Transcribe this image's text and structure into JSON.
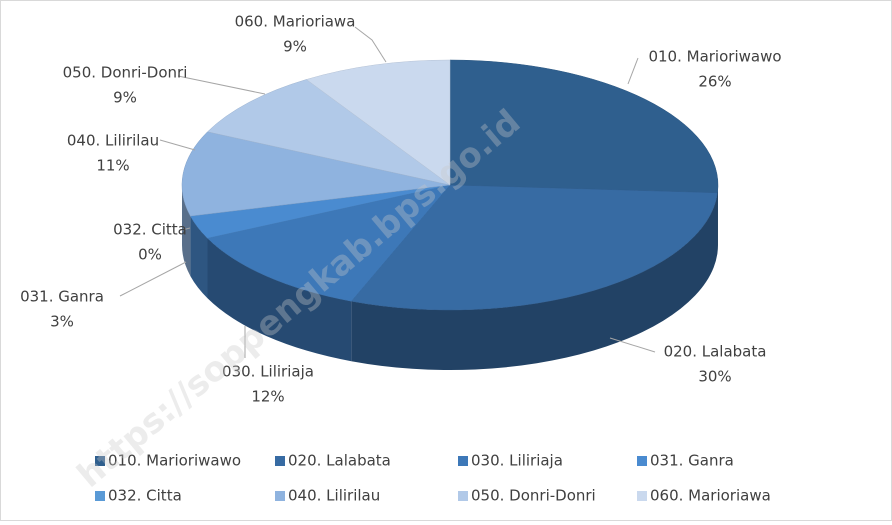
{
  "chart_data": {
    "type": "pie",
    "categories": [
      "010. Marioriwawo",
      "020. Lalabata",
      "030. Liliriaja",
      "031. Ganra",
      "032. Citta",
      "040. Lilirilau",
      "050. Donri-Donri",
      "060. Marioriawa"
    ],
    "values": [
      26,
      30,
      12,
      3,
      0,
      11,
      9,
      9
    ],
    "value_labels": [
      "26%",
      "30%",
      "12%",
      "3%",
      "0%",
      "11%",
      "9%",
      "9%"
    ],
    "colors": [
      "#2f5f8e",
      "#376ba3",
      "#3d78b8",
      "#4a8bd0",
      "#5a9ad6",
      "#8fb3df",
      "#b1c9e8",
      "#cad9ee"
    ],
    "legend": "bottom"
  },
  "watermark": "https://soppengkab.bps.go.id"
}
